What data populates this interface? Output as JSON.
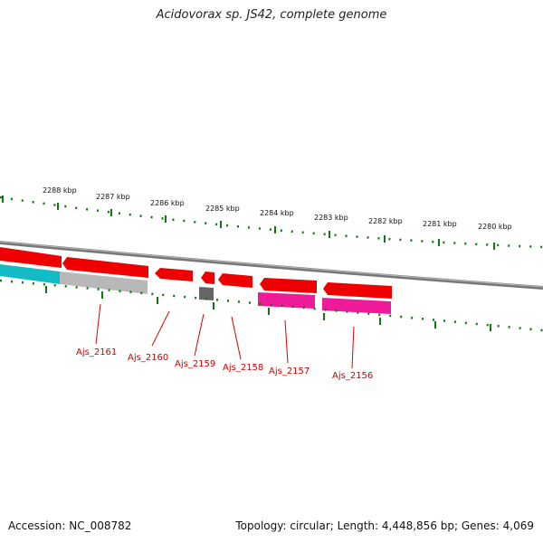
{
  "title": "Acidovorax sp. JS42, complete genome",
  "footer": {
    "accession": "Accession: NC_008782",
    "stats": "Topology: circular; Length: 4,448,856 bp; Genes: 4,069"
  },
  "colors": {
    "forward_gene": "#ee0000",
    "reverse_gene": "#ee1a99",
    "other_feature_gray": "#b0b0b0",
    "other_feature_cyan": "#13bcc4",
    "dark_feature": "#666666",
    "backbone": "#888888",
    "ticks": "#117711",
    "callout": "#dd0000"
  },
  "scale_labels": [
    "2288 kbp",
    "2287 kbp",
    "2286 kbp",
    "2285 kbp",
    "2284 kbp",
    "2283 kbp",
    "2282 kbp",
    "2281 kbp",
    "2280 kbp"
  ],
  "gene_labels": [
    "Ajs_2161",
    "Ajs_2160",
    "Ajs_2159",
    "Ajs_2158",
    "Ajs_2157",
    "Ajs_2156"
  ]
}
